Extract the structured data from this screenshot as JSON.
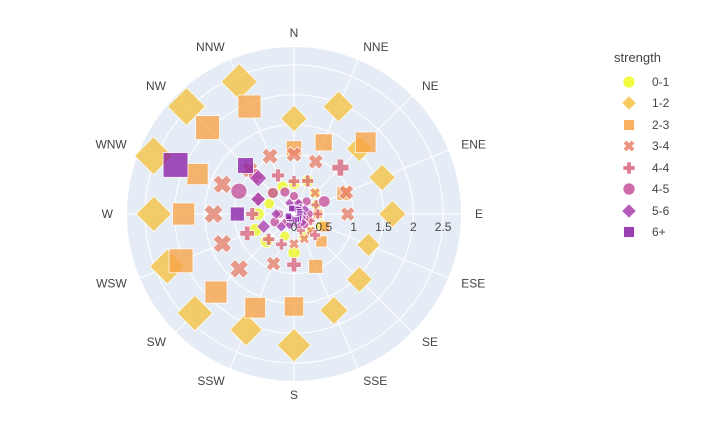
{
  "chart_data": {
    "type": "scatter_polar",
    "title": "",
    "angular_axis": {
      "direction": "clockwise",
      "rotation": "N at top",
      "categories": [
        "N",
        "NNE",
        "NE",
        "ENE",
        "E",
        "ESE",
        "SE",
        "SSE",
        "S",
        "SSW",
        "SW",
        "WSW",
        "W",
        "WNW",
        "NW",
        "NNW"
      ]
    },
    "radial_axis": {
      "range": [
        0,
        2.8
      ],
      "tick_labels": [
        "0",
        "0.5",
        "1",
        "1.5",
        "2",
        "2.5"
      ],
      "tick_values": [
        0,
        0.5,
        1,
        1.5,
        2,
        2.5
      ]
    },
    "legend_title": "strength",
    "series": [
      {
        "name": "0-1",
        "symbol": "circle",
        "color": "#f0f921",
        "points": [
          {
            "dir": "N",
            "r": 0.5,
            "f": 0.5
          },
          {
            "dir": "NNE",
            "r": 0.6,
            "f": 0.6
          },
          {
            "dir": "NE",
            "r": 0.5,
            "f": 0.5
          },
          {
            "dir": "ENE",
            "r": 0.4,
            "f": 0.4
          },
          {
            "dir": "E",
            "r": 0.4,
            "f": 0.4
          },
          {
            "dir": "ESE",
            "r": 0.5,
            "f": 0.5
          },
          {
            "dir": "SE",
            "r": 0.4,
            "f": 0.4
          },
          {
            "dir": "SSE",
            "r": 0.4,
            "f": 0.4
          },
          {
            "dir": "S",
            "r": 0.65,
            "f": 0.65
          },
          {
            "dir": "SSW",
            "r": 0.4,
            "f": 0.4
          },
          {
            "dir": "SW",
            "r": 0.65,
            "f": 0.65
          },
          {
            "dir": "WSW",
            "r": 0.7,
            "f": 0.7
          },
          {
            "dir": "W",
            "r": 0.6,
            "f": 0.6
          },
          {
            "dir": "WNW",
            "r": 0.45,
            "f": 0.45
          },
          {
            "dir": "NW",
            "r": 0.5,
            "f": 0.5
          },
          {
            "dir": "NNW",
            "r": 0.5,
            "f": 0.5
          }
        ]
      },
      {
        "name": "1-2",
        "symbol": "diamond",
        "color": "#f5c13f",
        "points": [
          {
            "dir": "N",
            "r": 1.6,
            "f": 1.6
          },
          {
            "dir": "NNE",
            "r": 1.95,
            "f": 1.95
          },
          {
            "dir": "NE",
            "r": 1.55,
            "f": 1.55
          },
          {
            "dir": "ENE",
            "r": 1.6,
            "f": 1.6
          },
          {
            "dir": "E",
            "r": 1.65,
            "f": 1.65
          },
          {
            "dir": "ESE",
            "r": 1.35,
            "f": 1.35
          },
          {
            "dir": "SE",
            "r": 1.55,
            "f": 1.55
          },
          {
            "dir": "SSE",
            "r": 1.75,
            "f": 1.75
          },
          {
            "dir": "S",
            "r": 2.2,
            "f": 2.2
          },
          {
            "dir": "SSW",
            "r": 2.1,
            "f": 2.1
          },
          {
            "dir": "SW",
            "r": 2.35,
            "f": 2.35
          },
          {
            "dir": "WSW",
            "r": 2.3,
            "f": 2.3
          },
          {
            "dir": "W",
            "r": 2.35,
            "f": 2.35
          },
          {
            "dir": "WNW",
            "r": 2.55,
            "f": 2.55
          },
          {
            "dir": "NW",
            "r": 2.55,
            "f": 2.55
          },
          {
            "dir": "NNW",
            "r": 2.4,
            "f": 2.4
          }
        ]
      },
      {
        "name": "2-3",
        "symbol": "square",
        "color": "#f9a347",
        "points": [
          {
            "dir": "N",
            "r": 1.1,
            "f": 1.1
          },
          {
            "dir": "NNE",
            "r": 1.3,
            "f": 1.3
          },
          {
            "dir": "NE",
            "r": 1.7,
            "f": 1.7
          },
          {
            "dir": "ENE",
            "r": 0.9,
            "f": 0.9
          },
          {
            "dir": "E",
            "r": 0.4,
            "f": 0.4
          },
          {
            "dir": "ESE",
            "r": 0.55,
            "f": 0.55
          },
          {
            "dir": "SE",
            "r": 0.65,
            "f": 0.65
          },
          {
            "dir": "SSE",
            "r": 0.95,
            "f": 0.95
          },
          {
            "dir": "S",
            "r": 1.55,
            "f": 1.55
          },
          {
            "dir": "SSW",
            "r": 1.7,
            "f": 1.7
          },
          {
            "dir": "SW",
            "r": 1.85,
            "f": 1.85
          },
          {
            "dir": "WSW",
            "r": 2.05,
            "f": 2.05
          },
          {
            "dir": "W",
            "r": 1.85,
            "f": 1.85
          },
          {
            "dir": "WNW",
            "r": 1.75,
            "f": 1.75
          },
          {
            "dir": "NW",
            "r": 2.05,
            "f": 2.05
          },
          {
            "dir": "NNW",
            "r": 1.95,
            "f": 1.95
          }
        ]
      },
      {
        "name": "3-4",
        "symbol": "x",
        "color": "#e8826a",
        "points": [
          {
            "dir": "N",
            "r": 1.0,
            "f": 1.0
          },
          {
            "dir": "NNE",
            "r": 0.95,
            "f": 0.95
          },
          {
            "dir": "NE",
            "r": 0.5,
            "f": 0.5
          },
          {
            "dir": "ENE",
            "r": 0.95,
            "f": 0.95
          },
          {
            "dir": "E",
            "r": 0.9,
            "f": 0.9
          },
          {
            "dir": "ESE",
            "r": 0.3,
            "f": 0.3
          },
          {
            "dir": "SE",
            "r": 0.4,
            "f": 0.4
          },
          {
            "dir": "SSE",
            "r": 0.45,
            "f": 0.45
          },
          {
            "dir": "S",
            "r": 0.5,
            "f": 0.5
          },
          {
            "dir": "SSW",
            "r": 0.9,
            "f": 0.9
          },
          {
            "dir": "SW",
            "r": 1.3,
            "f": 1.3
          },
          {
            "dir": "WSW",
            "r": 1.3,
            "f": 1.3
          },
          {
            "dir": "W",
            "r": 1.35,
            "f": 1.35
          },
          {
            "dir": "WNW",
            "r": 1.3,
            "f": 1.3
          },
          {
            "dir": "NW",
            "r": 1.05,
            "f": 1.05
          },
          {
            "dir": "NNW",
            "r": 1.05,
            "f": 1.05
          }
        ]
      },
      {
        "name": "4-4",
        "symbol": "cross",
        "color": "#d8667c",
        "points": [
          {
            "dir": "N",
            "r": 0.55,
            "f": 0.55
          },
          {
            "dir": "NNE",
            "r": 0.6,
            "f": 0.6
          },
          {
            "dir": "NE",
            "r": 1.1,
            "f": 1.1
          },
          {
            "dir": "ENE",
            "r": 0.4,
            "f": 0.4
          },
          {
            "dir": "E",
            "r": 0.4,
            "f": 0.4
          },
          {
            "dir": "ESE",
            "r": 0.3,
            "f": 0.3
          },
          {
            "dir": "SE",
            "r": 0.5,
            "f": 0.5
          },
          {
            "dir": "SSE",
            "r": 0.3,
            "f": 0.3
          },
          {
            "dir": "S",
            "r": 0.85,
            "f": 0.85
          },
          {
            "dir": "SSW",
            "r": 0.55,
            "f": 0.55
          },
          {
            "dir": "SW",
            "r": 0.6,
            "f": 0.6
          },
          {
            "dir": "WSW",
            "r": 0.85,
            "f": 0.85
          },
          {
            "dir": "W",
            "r": 0.7,
            "f": 0.7
          },
          {
            "dir": "WNW",
            "r": 0.65,
            "f": 0.65
          },
          {
            "dir": "NW",
            "r": 0.9,
            "f": 0.9
          },
          {
            "dir": "NNW",
            "r": 0.7,
            "f": 0.7
          }
        ]
      },
      {
        "name": "4-5",
        "symbol": "circle",
        "color": "#c4509a",
        "points": [
          {
            "dir": "N",
            "r": 0.3,
            "f": 0.3
          },
          {
            "dir": "NNE",
            "r": 0.2,
            "f": 0.2
          },
          {
            "dir": "NE",
            "r": 0.3,
            "f": 0.3
          },
          {
            "dir": "ENE",
            "r": 0.55,
            "f": 0.55
          },
          {
            "dir": "E",
            "r": 0.25,
            "f": 0.25
          },
          {
            "dir": "ESE",
            "r": 0.2,
            "f": 0.2
          },
          {
            "dir": "SE",
            "r": 0.25,
            "f": 0.25
          },
          {
            "dir": "SSE",
            "r": 0.2,
            "f": 0.2
          },
          {
            "dir": "S",
            "r": 0.1,
            "f": 0.1
          },
          {
            "dir": "SSW",
            "r": 0.15,
            "f": 0.15
          },
          {
            "dir": "SW",
            "r": 0.2,
            "f": 0.2
          },
          {
            "dir": "WSW",
            "r": 0.35,
            "f": 0.35
          },
          {
            "dir": "W",
            "r": 0.25,
            "f": 0.25
          },
          {
            "dir": "WNW",
            "r": 1.0,
            "f": 1.0
          },
          {
            "dir": "NW",
            "r": 0.5,
            "f": 0.5
          },
          {
            "dir": "NNW",
            "r": 0.4,
            "f": 0.4
          }
        ]
      },
      {
        "name": "5-6",
        "symbol": "diamond",
        "color": "#a93db0",
        "points": [
          {
            "dir": "N",
            "r": 0.15,
            "f": 0.15
          },
          {
            "dir": "NNE",
            "r": 0.2,
            "f": 0.2
          },
          {
            "dir": "NE",
            "r": 0.15,
            "f": 0.15
          },
          {
            "dir": "ENE",
            "r": 0.2,
            "f": 0.2
          },
          {
            "dir": "E",
            "r": 0.15,
            "f": 0.15
          },
          {
            "dir": "ESE",
            "r": 0.15,
            "f": 0.15
          },
          {
            "dir": "SE",
            "r": 0.2,
            "f": 0.2
          },
          {
            "dir": "SSE",
            "r": 0.15,
            "f": 0.15
          },
          {
            "dir": "S",
            "r": 0.15,
            "f": 0.15
          },
          {
            "dir": "SSW",
            "r": 0.2,
            "f": 0.2
          },
          {
            "dir": "SW",
            "r": 0.3,
            "f": 0.3
          },
          {
            "dir": "WSW",
            "r": 0.55,
            "f": 0.55
          },
          {
            "dir": "W",
            "r": 0.3,
            "f": 0.3
          },
          {
            "dir": "WNW",
            "r": 0.65,
            "f": 0.65
          },
          {
            "dir": "NW",
            "r": 0.85,
            "f": 0.85
          },
          {
            "dir": "NNW",
            "r": 0.2,
            "f": 0.2
          }
        ]
      },
      {
        "name": "6+",
        "symbol": "square",
        "color": "#8a1fa6",
        "points": [
          {
            "dir": "N",
            "r": 0.1,
            "f": 0.1
          },
          {
            "dir": "NNE",
            "r": 0.1,
            "f": 0.1
          },
          {
            "dir": "NE",
            "r": 0.1,
            "f": 0.1
          },
          {
            "dir": "ENE",
            "r": 0.1,
            "f": 0.1
          },
          {
            "dir": "E",
            "r": 0.1,
            "f": 0.1
          },
          {
            "dir": "ESE",
            "r": 0.1,
            "f": 0.1
          },
          {
            "dir": "SE",
            "r": 0.1,
            "f": 0.1
          },
          {
            "dir": "SSE",
            "r": 0.1,
            "f": 0.1
          },
          {
            "dir": "S",
            "r": 0.1,
            "f": 0.1
          },
          {
            "dir": "SSW",
            "r": 0.1,
            "f": 0.1
          },
          {
            "dir": "SW",
            "r": 0.1,
            "f": 0.1
          },
          {
            "dir": "WSW",
            "r": 0.1,
            "f": 0.1
          },
          {
            "dir": "W",
            "r": 0.95,
            "f": 0.95
          },
          {
            "dir": "WNW",
            "r": 2.15,
            "f": 2.15
          },
          {
            "dir": "NW",
            "r": 1.15,
            "f": 1.15
          },
          {
            "dir": "NNW",
            "r": 0.1,
            "f": 0.1
          }
        ]
      }
    ]
  },
  "colors": {
    "polar_bg": "#e5ecf6",
    "grid": "#ffffff",
    "text": "#444444"
  }
}
